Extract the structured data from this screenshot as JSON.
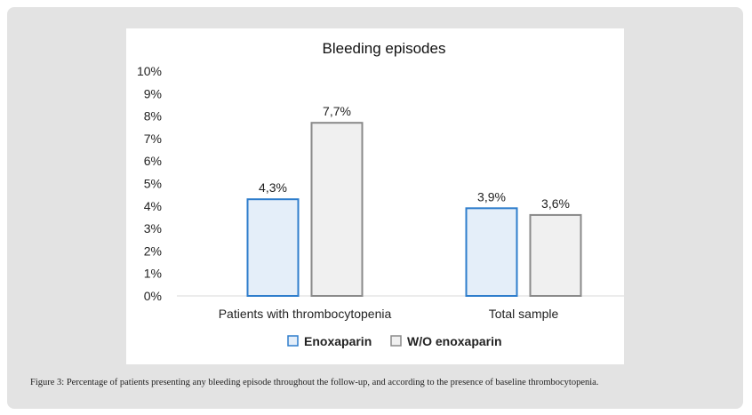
{
  "chart_data": {
    "type": "bar",
    "title": "Bleeding episodes",
    "xlabel": "",
    "ylabel": "",
    "ylim": [
      0,
      10
    ],
    "yticks": [
      "0%",
      "1%",
      "2%",
      "3%",
      "4%",
      "5%",
      "6%",
      "7%",
      "8%",
      "9%",
      "10%"
    ],
    "categories": [
      "Patients with thrombocytopenia",
      "Total sample"
    ],
    "series": [
      {
        "name": "Enoxaparin",
        "values": [
          4.3,
          3.9
        ],
        "labels": [
          "4,3%",
          "3,9%"
        ],
        "fill": "#e4eef9",
        "stroke": "#2e7dcc"
      },
      {
        "name": "W/O enoxaparin",
        "values": [
          7.7,
          3.6
        ],
        "labels": [
          "7,7%",
          "3,6%"
        ],
        "fill": "#f0f0f0",
        "stroke": "#8a8a8a"
      }
    ],
    "grid": false,
    "legend": "bottom-center"
  },
  "caption": "Figure 3: Percentage of patients presenting any bleeding episode throughout the follow-up, and according to the presence of baseline thrombocytopenia."
}
